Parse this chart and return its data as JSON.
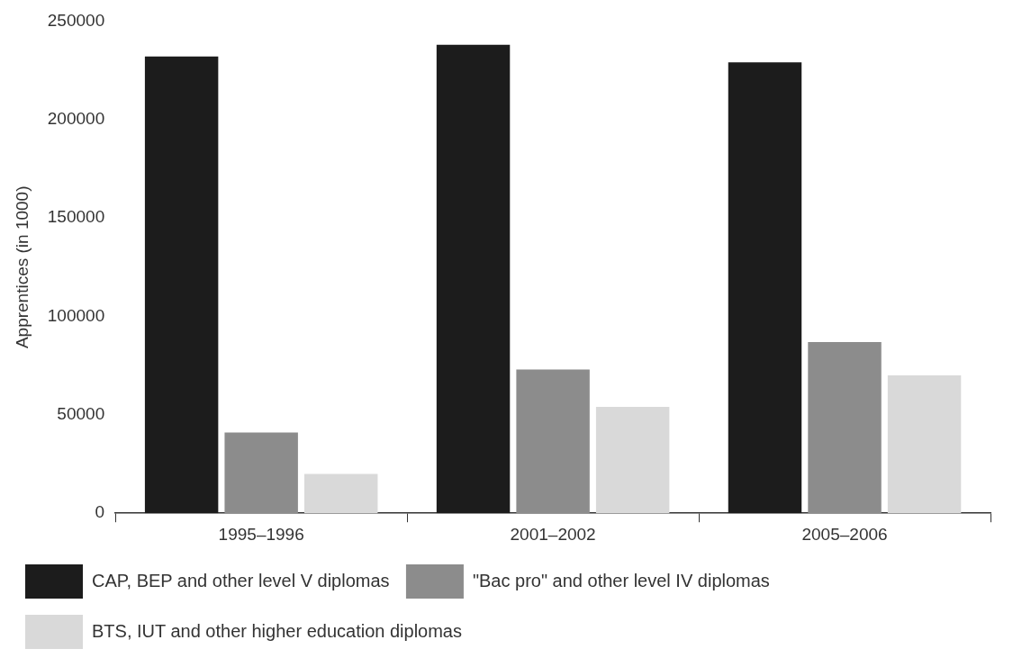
{
  "chart_data": {
    "type": "bar",
    "ylabel": "Apprentices (in 1000)",
    "categories": [
      "1995–1996",
      "2001–2002",
      "2005–2006"
    ],
    "series": [
      {
        "name": "CAP, BEP and other level V diplomas",
        "color": "#1c1c1c",
        "values": [
          232000,
          238000,
          229000
        ]
      },
      {
        "name": "\"Bac pro\" and other level IV diplomas",
        "color": "#8c8c8c",
        "values": [
          41000,
          73000,
          87000
        ]
      },
      {
        "name": "BTS, IUT and other higher education diplomas",
        "color": "#d9d9d9",
        "values": [
          20000,
          54000,
          70000
        ]
      }
    ],
    "ylim": [
      0,
      250000
    ],
    "yticks": [
      0,
      50000,
      100000,
      150000,
      200000,
      250000
    ],
    "grid": false,
    "legend": "bottom"
  }
}
